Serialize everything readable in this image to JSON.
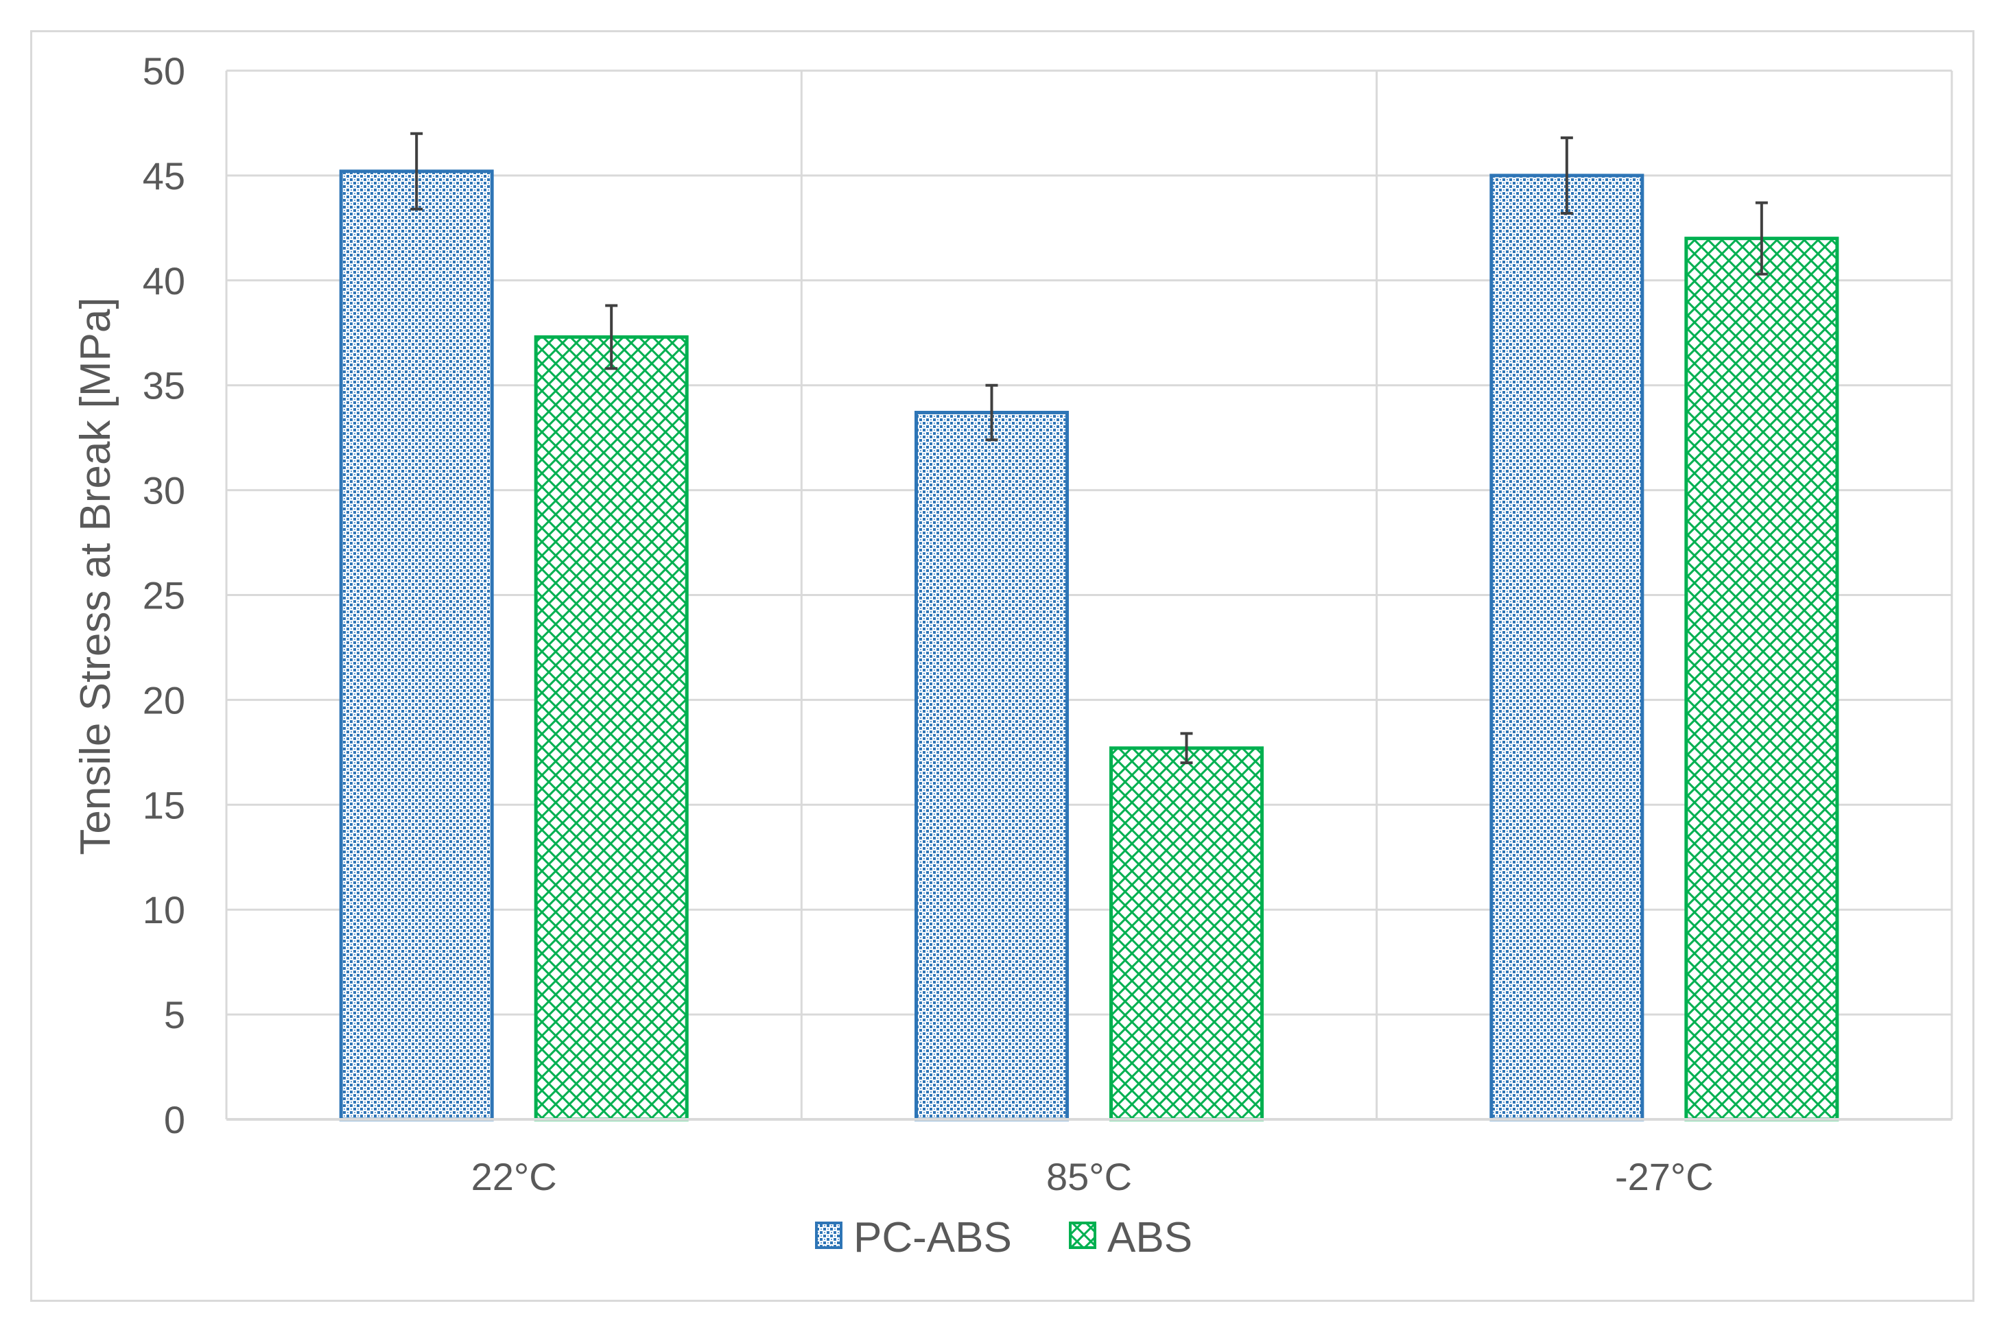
{
  "chart_data": {
    "type": "bar",
    "title": "",
    "xlabel": "",
    "ylabel": "Tensile Stress at Break [MPa]",
    "categories": [
      "22°C",
      "85°C",
      "-27°C"
    ],
    "ylim": [
      0,
      50
    ],
    "yticks": [
      0,
      5,
      10,
      15,
      20,
      25,
      30,
      35,
      40,
      45,
      50
    ],
    "grid": true,
    "legend_position": "bottom",
    "series": [
      {
        "name": "PC-ABS",
        "values": [
          45.2,
          33.7,
          45.0
        ],
        "error": [
          1.8,
          1.3,
          1.8
        ],
        "color": "#2e75b6",
        "pattern": "dotted-grid"
      },
      {
        "name": "ABS",
        "values": [
          37.3,
          17.7,
          42.0
        ],
        "error": [
          1.5,
          0.7,
          1.7
        ],
        "color": "#00b050",
        "pattern": "crosshatch"
      }
    ]
  }
}
